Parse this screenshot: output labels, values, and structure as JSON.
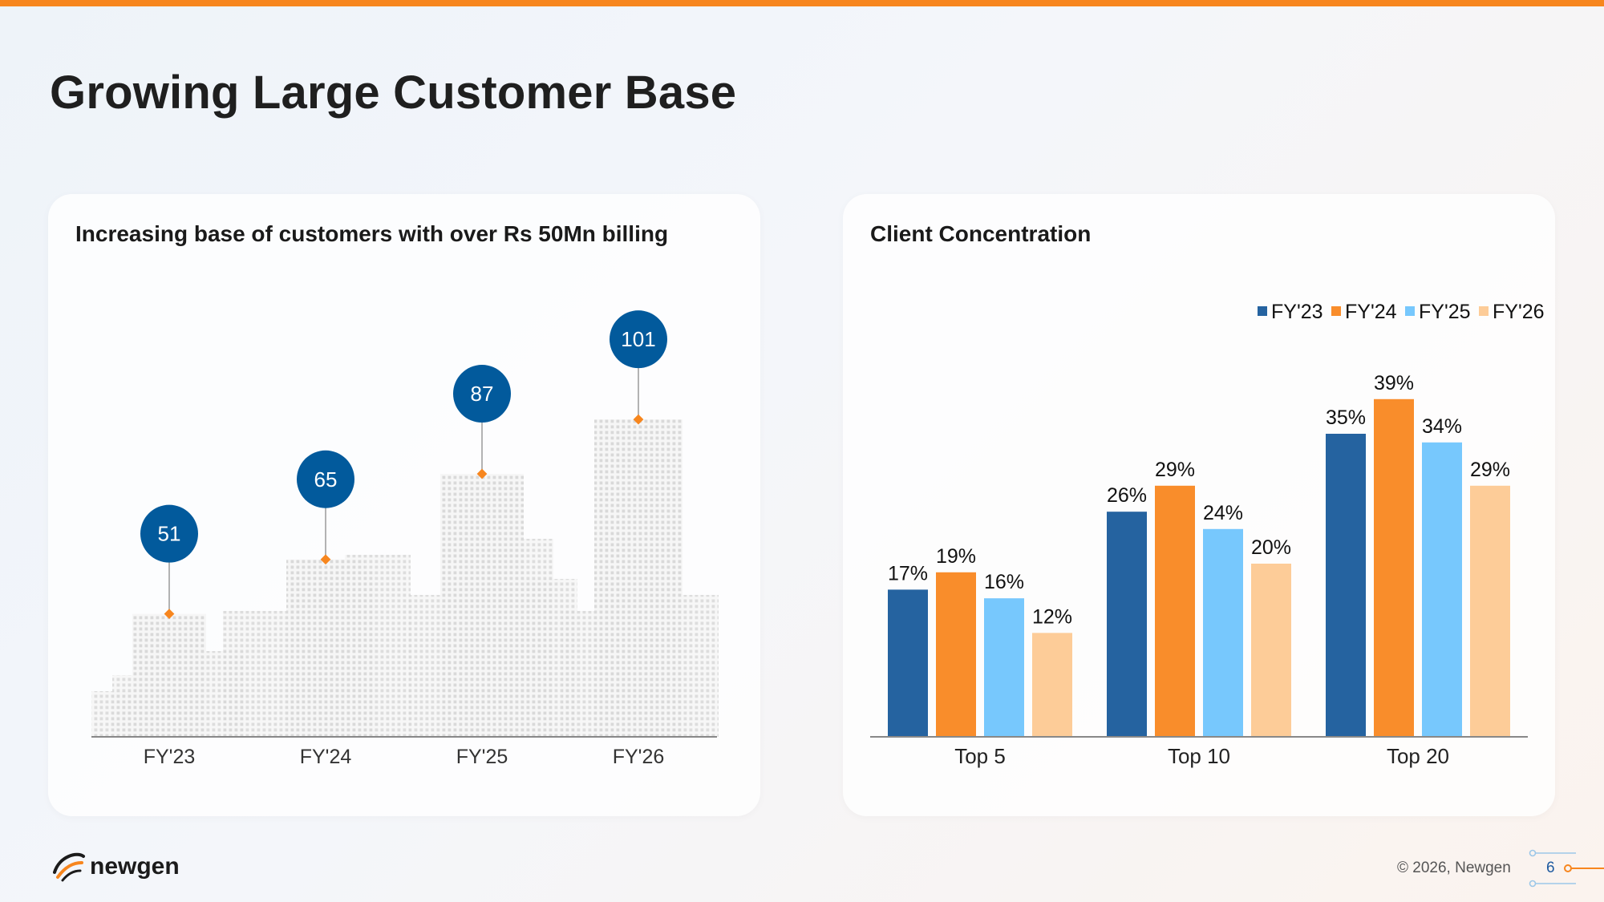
{
  "slide": {
    "title": "Growing Large Customer Base",
    "copyright": "© 2026, Newgen",
    "page_number": "6",
    "logo_text": "newgen"
  },
  "colors": {
    "accent": "#f7861e",
    "navy": "#025a9c",
    "fy23": "#2563a0",
    "fy24": "#f98d2b",
    "fy25": "#77c8fd",
    "fy26": "#fdcc98"
  },
  "chart_data": [
    {
      "type": "bar",
      "title": "Increasing base of customers with over Rs 50Mn billing",
      "categories": [
        "FY'23",
        "FY'24",
        "FY'25",
        "FY'26"
      ],
      "values": [
        51,
        65,
        87,
        101
      ],
      "data_labels": [
        "51",
        "65",
        "87",
        "101"
      ],
      "xlabel": "",
      "ylabel": "",
      "grid": false
    },
    {
      "type": "bar",
      "title": "Client Concentration",
      "categories": [
        "Top 5",
        "Top 10",
        "Top 20"
      ],
      "series": [
        {
          "name": "FY'23",
          "values": [
            17,
            26,
            35
          ],
          "labels": [
            "17%",
            "26%",
            "35%"
          ]
        },
        {
          "name": "FY'24",
          "values": [
            19,
            29,
            39
          ],
          "labels": [
            "19%",
            "29%",
            "39%"
          ]
        },
        {
          "name": "FY'25",
          "values": [
            16,
            24,
            34
          ],
          "labels": [
            "16%",
            "24%",
            "34%"
          ]
        },
        {
          "name": "FY'26",
          "values": [
            12,
            20,
            29
          ],
          "labels": [
            "12%",
            "20%",
            "29%"
          ]
        }
      ],
      "legend": "top-right",
      "xlabel": "",
      "ylabel": "",
      "grid": false
    }
  ]
}
